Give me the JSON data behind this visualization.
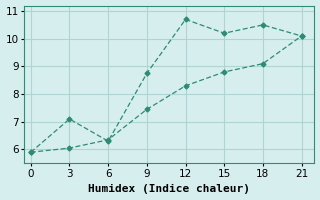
{
  "line1_x": [
    0,
    3,
    6,
    9,
    12,
    15,
    18,
    21
  ],
  "line1_y": [
    5.9,
    7.1,
    6.3,
    8.75,
    10.7,
    10.2,
    10.5,
    10.1
  ],
  "line2_x": [
    0,
    3,
    6,
    9,
    12,
    15,
    18,
    21
  ],
  "line2_y": [
    5.9,
    6.05,
    6.35,
    7.45,
    8.3,
    8.8,
    9.1,
    10.1
  ],
  "line_color": "#2e8b74",
  "bg_color": "#d6eeee",
  "grid_color": "#b0d4d4",
  "xlabel": "Humidex (Indice chaleur)",
  "xlim": [
    -0.5,
    22
  ],
  "ylim": [
    5.5,
    11.2
  ],
  "xticks": [
    0,
    3,
    6,
    9,
    12,
    15,
    18,
    21
  ],
  "yticks": [
    6,
    7,
    8,
    9,
    10,
    11
  ],
  "xlabel_fontsize": 8,
  "tick_fontsize": 7.5
}
